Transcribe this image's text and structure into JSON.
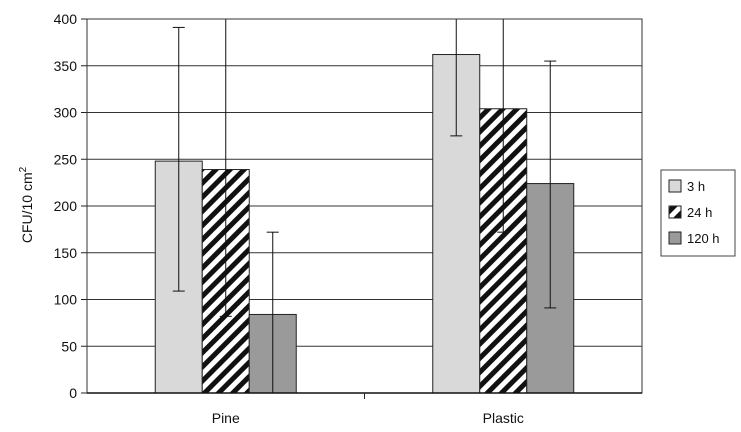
{
  "chart_data": {
    "type": "bar",
    "categories": [
      "Pine",
      "Plastic"
    ],
    "ylabel": "CFU/10 cm",
    "ylabel_superscript": "2",
    "ylim": [
      0,
      400
    ],
    "yticks": [
      0,
      50,
      100,
      150,
      200,
      250,
      300,
      350,
      400
    ],
    "grid": true,
    "legend_position": "right",
    "series": [
      {
        "name": "3 h",
        "values": [
          248,
          362
        ],
        "error_low": [
          109,
          275
        ],
        "error_high": [
          391,
          402
        ],
        "fill": "light-gray",
        "color": "#d9d9d9"
      },
      {
        "name": "24 h",
        "values": [
          239,
          304
        ],
        "error_low": [
          82,
          172
        ],
        "error_high": [
          400,
          402
        ],
        "fill": "diagonal-hatch",
        "color": "#111111"
      },
      {
        "name": "120 h",
        "values": [
          84,
          224
        ],
        "error_low": [
          0,
          91
        ],
        "error_high": [
          172,
          355
        ],
        "fill": "medium-gray",
        "color": "#9a9a9a"
      }
    ]
  }
}
